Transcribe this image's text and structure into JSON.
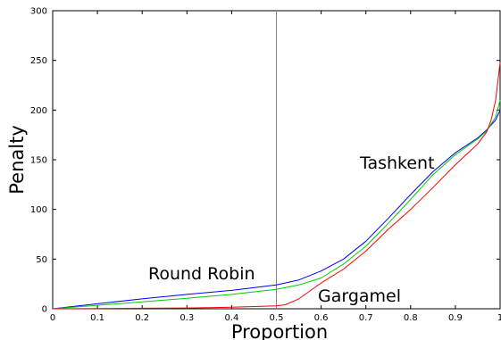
{
  "chart_data": {
    "type": "line",
    "title": "",
    "xlabel": "Proportion",
    "ylabel": "Penalty",
    "xlim": [
      0,
      1
    ],
    "ylim": [
      0,
      300
    ],
    "xticks": [
      0,
      0.1,
      0.2,
      0.3,
      0.4,
      0.5,
      0.6,
      0.7,
      0.8,
      0.9,
      1
    ],
    "yticks": [
      0,
      50,
      100,
      150,
      200,
      250,
      300
    ],
    "xtick_labels": [
      "0",
      "0.1",
      "0.2",
      "0.3",
      "0.4",
      "0.5",
      "0.6",
      "0.7",
      "0.8",
      "0.9",
      "1"
    ],
    "ytick_labels": [
      "0",
      "50",
      "100",
      "150",
      "200",
      "250",
      "300"
    ],
    "grid": false,
    "vertical_marker": 0.5,
    "legend": "none",
    "series": [
      {
        "name": "Round Robin",
        "color": "#0000ff",
        "x": [
          0,
          0.1,
          0.2,
          0.3,
          0.4,
          0.5,
          0.55,
          0.6,
          0.65,
          0.7,
          0.75,
          0.8,
          0.85,
          0.9,
          0.95,
          0.97,
          0.99,
          1.0
        ],
        "y": [
          0,
          5,
          10,
          14.5,
          18.5,
          24,
          29,
          38,
          50,
          68,
          91,
          115,
          138,
          157,
          172,
          180,
          190,
          200
        ]
      },
      {
        "name": "Tashkent",
        "color": "#00cc00",
        "x": [
          0,
          0.1,
          0.2,
          0.3,
          0.4,
          0.5,
          0.55,
          0.6,
          0.65,
          0.7,
          0.75,
          0.8,
          0.85,
          0.9,
          0.95,
          0.97,
          0.99,
          1.0
        ],
        "y": [
          0,
          3.5,
          7,
          10.5,
          14.5,
          19.5,
          24,
          31,
          45,
          63,
          86,
          110,
          135,
          155,
          171,
          179,
          193,
          210
        ]
      },
      {
        "name": "Gargamel",
        "color": "#ff0000",
        "x": [
          0,
          0.1,
          0.2,
          0.3,
          0.4,
          0.5,
          0.52,
          0.55,
          0.6,
          0.65,
          0.7,
          0.75,
          0.8,
          0.85,
          0.9,
          0.95,
          0.97,
          0.98,
          0.99,
          1.0
        ],
        "y": [
          0,
          0.3,
          0.5,
          0.8,
          1.5,
          3,
          4,
          10,
          26,
          40,
          58,
          80,
          100,
          122,
          145,
          166,
          178,
          190,
          210,
          248
        ]
      }
    ],
    "annotations": [
      {
        "text": "Round Robin",
        "series": "Round Robin"
      },
      {
        "text": "Tashkent",
        "series": "Tashkent"
      },
      {
        "text": "Gargamel",
        "series": "Gargamel"
      }
    ]
  }
}
